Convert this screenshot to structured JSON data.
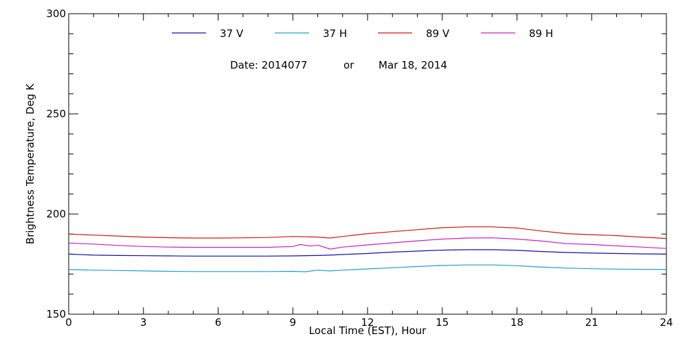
{
  "chart_data": {
    "type": "line",
    "xlabel": "Local Time (EST), Hour",
    "ylabel": "Brightness Temperature, Deg K",
    "xlim": [
      0,
      24
    ],
    "ylim": [
      150,
      300
    ],
    "xticks": [
      0,
      3,
      6,
      9,
      12,
      15,
      18,
      21,
      24
    ],
    "yticks": [
      150,
      200,
      250,
      300
    ],
    "grid": false,
    "legend_position": "top-center",
    "annotation": {
      "date_label": "Date: 2014077",
      "connector": "or",
      "date_text": "Mar 18, 2014"
    },
    "series": [
      {
        "name": "37 V",
        "color": "#1010a8",
        "x": [
          0,
          1,
          2,
          3,
          4,
          5,
          6,
          7,
          8,
          9,
          10,
          10.5,
          11,
          12,
          13,
          14,
          15,
          16,
          17,
          18,
          19,
          20,
          21,
          22,
          23,
          24
        ],
        "y": [
          180,
          179.5,
          179.3,
          179.2,
          179.1,
          179,
          179,
          179,
          179,
          179.1,
          179.3,
          179.5,
          179.8,
          180.3,
          181,
          181.5,
          182,
          182.2,
          182.2,
          181.9,
          181.3,
          180.8,
          180.5,
          180.3,
          180.1,
          180
        ]
      },
      {
        "name": "37 H",
        "color": "#1a9fd4",
        "x": [
          0,
          1,
          2,
          3,
          4,
          5,
          6,
          7,
          8,
          9,
          9.5,
          10,
          10.5,
          11,
          12,
          13,
          14,
          15,
          16,
          17,
          18,
          19,
          20,
          21,
          22,
          23,
          24
        ],
        "y": [
          172.3,
          172,
          171.8,
          171.6,
          171.4,
          171.3,
          171.3,
          171.3,
          171.3,
          171.4,
          171.2,
          172,
          171.6,
          172,
          172.6,
          173.2,
          173.8,
          174.3,
          174.6,
          174.6,
          174.2,
          173.5,
          173,
          172.7,
          172.5,
          172.4,
          172.3
        ]
      },
      {
        "name": "89 V",
        "color": "#d21414",
        "x": [
          0,
          1,
          2,
          3,
          4,
          5,
          6,
          7,
          8,
          9,
          10,
          10.5,
          11,
          12,
          13,
          14,
          15,
          16,
          17,
          18,
          19,
          20,
          21,
          22,
          23,
          24
        ],
        "y": [
          190,
          189.5,
          189,
          188.5,
          188.2,
          188,
          188,
          188.1,
          188.3,
          188.8,
          188.5,
          188,
          188.8,
          190.2,
          191.2,
          192.2,
          193.2,
          193.6,
          193.6,
          193,
          191.5,
          190.2,
          189.7,
          189.2,
          188.5,
          187.8
        ]
      },
      {
        "name": "89 H",
        "color": "#c81ec8",
        "x": [
          0,
          1,
          2,
          3,
          4,
          5,
          6,
          7,
          8,
          9,
          9.3,
          9.7,
          10,
          10.5,
          11,
          12,
          13,
          14,
          15,
          16,
          17,
          18,
          19,
          20,
          21,
          22,
          23,
          24
        ],
        "y": [
          185.5,
          185,
          184.3,
          183.8,
          183.5,
          183.4,
          183.4,
          183.4,
          183.4,
          183.8,
          184.8,
          184,
          184.5,
          182.5,
          183.5,
          184.6,
          185.6,
          186.6,
          187.5,
          188,
          188.1,
          187.5,
          186.5,
          185.2,
          184.8,
          184.1,
          183.5,
          182.8
        ]
      }
    ]
  }
}
